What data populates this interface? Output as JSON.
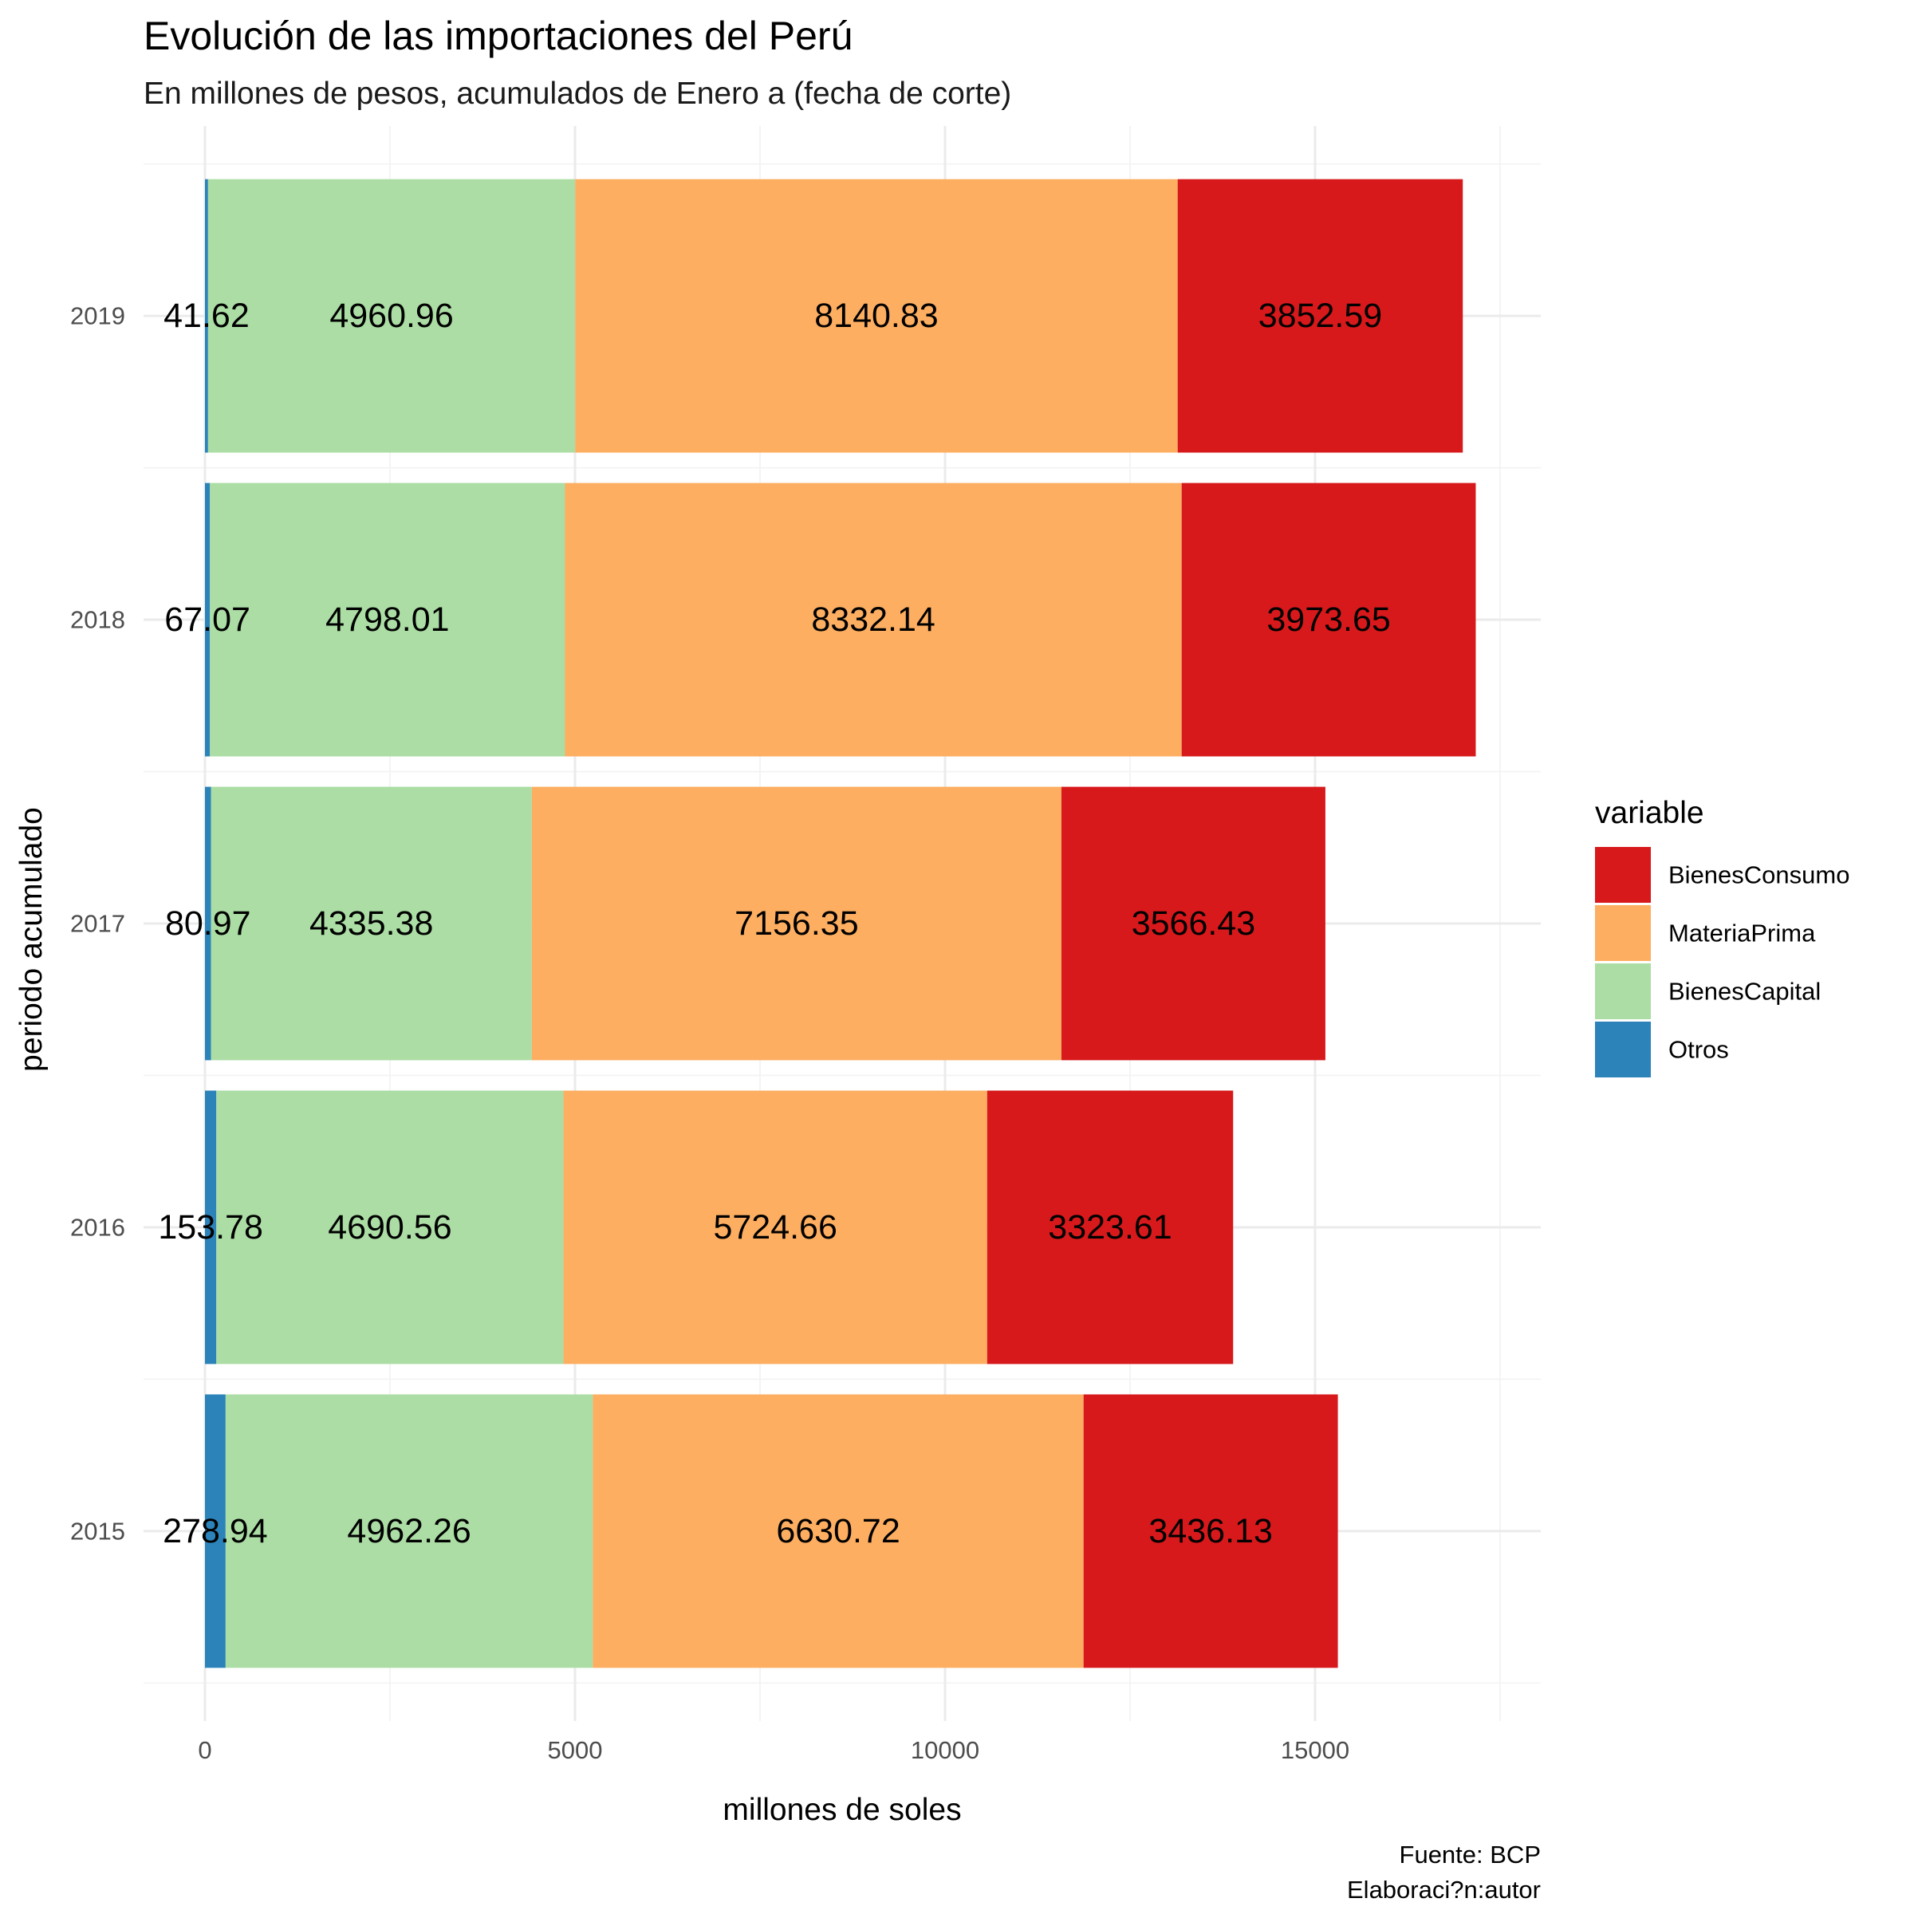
{
  "chart_data": {
    "type": "bar",
    "orientation": "horizontal",
    "stacked": true,
    "title": "Evolución de las importaciones del Perú",
    "subtitle": "En millones de pesos, acumulados de Enero a (fecha de corte)",
    "xlabel": "millones de soles",
    "ylabel": "periodo acumulado",
    "xlim": [
      0,
      17500
    ],
    "x_ticks": [
      0,
      5000,
      10000,
      15000
    ],
    "x_tick_labels": [
      "0",
      "5000",
      "10000",
      "15000"
    ],
    "grid": true,
    "legend": {
      "title": "variable",
      "position": "right",
      "entries": [
        "BienesConsumo",
        "MateriaPrima",
        "BienesCapital",
        "Otros"
      ]
    },
    "categories": [
      "2015",
      "2016",
      "2017",
      "2018",
      "2019"
    ],
    "series": [
      {
        "name": "Otros",
        "color": "#2b83ba",
        "values": [
          278.94,
          153.78,
          80.97,
          67.07,
          41.62
        ],
        "labels": [
          "278.94",
          "153.78",
          "80.97",
          "67.07",
          "41.62"
        ]
      },
      {
        "name": "BienesCapital",
        "color": "#abdda4",
        "values": [
          4962.26,
          4690.56,
          4335.38,
          4798.01,
          4960.96
        ],
        "labels": [
          "4962.26",
          "4690.56",
          "4335.38",
          "4798.01",
          "4960.96"
        ]
      },
      {
        "name": "MateriaPrima",
        "color": "#fdae61",
        "values": [
          6630.72,
          5724.66,
          7156.35,
          8332.14,
          8140.83
        ],
        "labels": [
          "6630.72",
          "5724.66",
          "7156.35",
          "8332.14",
          "8140.83"
        ]
      },
      {
        "name": "BienesConsumo",
        "color": "#d7191c",
        "values": [
          3436.13,
          3323.61,
          3566.43,
          3973.65,
          3852.59
        ],
        "labels": [
          "3436.13",
          "3323.61",
          "3566.43",
          "3973.65",
          "3852.59"
        ]
      }
    ],
    "caption": [
      "Fuente: BCP",
      "Elaboraci?n:autor"
    ]
  }
}
